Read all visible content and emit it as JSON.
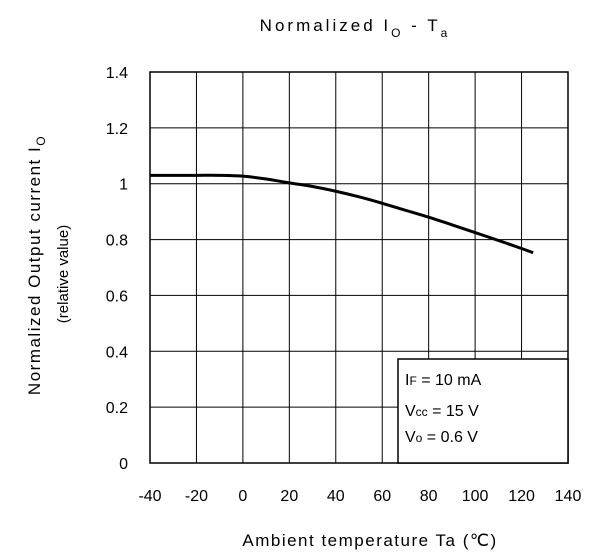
{
  "chart_data": {
    "type": "line",
    "title": {
      "prefix": "Normalized I",
      "prefix_sub": "O",
      "middle": " - T",
      "middle_sub": "a"
    },
    "xlabel": "Ambient temperature Ta (℃)",
    "ylabel": {
      "main": "Normalized Output current I",
      "main_sub": "O",
      "second": "(relative value)"
    },
    "xlim": [
      -40,
      140
    ],
    "ylim": [
      0,
      1.4
    ],
    "xticks": [
      -40,
      -20,
      0,
      20,
      40,
      60,
      80,
      100,
      120,
      140
    ],
    "xtick_labels": [
      "-40",
      "-20",
      "0",
      "20",
      "40",
      "60",
      "80",
      "100",
      "120",
      "140"
    ],
    "yticks": [
      0,
      0.2,
      0.4,
      0.6,
      0.8,
      1.0,
      1.2,
      1.4
    ],
    "ytick_labels": [
      "0",
      "0.2",
      "0.4",
      "0.6",
      "0.8",
      "1",
      "1.2",
      "1.4"
    ],
    "grid": true,
    "series": [
      {
        "x": [
          -40,
          -30,
          -20,
          -10,
          0,
          10,
          20,
          30,
          40,
          50,
          60,
          70,
          80,
          90,
          100,
          110,
          120,
          125
        ],
        "y": [
          1.03,
          1.03,
          1.03,
          1.03,
          1.027,
          1.017,
          1.003,
          0.99,
          0.973,
          0.953,
          0.93,
          0.905,
          0.88,
          0.853,
          0.825,
          0.797,
          0.768,
          0.753
        ]
      }
    ],
    "legend": {
      "placement": "bottom-right",
      "lines": [
        {
          "prefix": "I",
          "sub": "F",
          "rest": " = 10 mA"
        },
        {
          "prefix": "V",
          "sub": "cc",
          "rest": " = 15 V"
        },
        {
          "prefix": "V",
          "sub": "o",
          "rest": " = 0.6 V"
        }
      ]
    },
    "colors": {
      "line": "#000000",
      "grid": "#000000",
      "background": "#ffffff"
    }
  }
}
